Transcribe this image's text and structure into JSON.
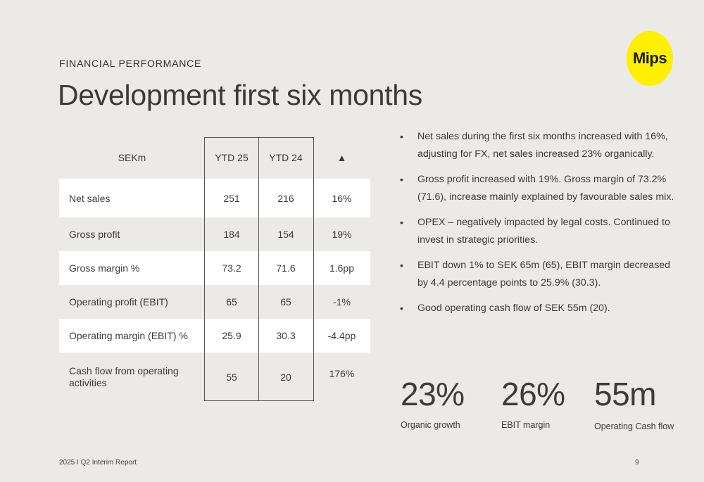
{
  "section_label": "FINANCIAL PERFORMANCE",
  "title": "Development first six months",
  "logo_text": "Mips",
  "colors": {
    "background": "#ECEAE6",
    "logo_yellow": "#FFEF00",
    "row_white": "#FFFFFF"
  },
  "table": {
    "headers": [
      "SEKm",
      "YTD 25",
      "YTD 24",
      "▲"
    ],
    "rows": [
      {
        "label": "Net sales",
        "ytd25": "251",
        "ytd24": "216",
        "change": "16%"
      },
      {
        "label": "Gross profit",
        "ytd25": "184",
        "ytd24": "154",
        "change": "19%"
      },
      {
        "label": "Gross margin %",
        "ytd25": "73.2",
        "ytd24": "71.6",
        "change": "1.6pp"
      },
      {
        "label": "Operating profit (EBIT)",
        "ytd25": "65",
        "ytd24": "65",
        "change": "-1%"
      },
      {
        "label": "Operating margin (EBIT) %",
        "ytd25": "25.9",
        "ytd24": "30.3",
        "change": "-4.4pp"
      },
      {
        "label": "Cash flow from operating activities",
        "ytd25": "55",
        "ytd24": "20",
        "change": "176%"
      }
    ]
  },
  "bullets": [
    "Net sales during the first six months increased with 16%, adjusting for FX, net sales increased 23% organically.",
    "Gross profit increased with 19%. Gross margin of 73.2% (71.6), increase mainly explained by favourable sales mix.",
    "OPEX – negatively impacted by legal costs. Continued to invest in strategic priorities.",
    "EBIT down 1% to SEK 65m (65), EBIT margin decreased by 4.4 percentage points to 25.9% (30.3).",
    "Good operating cash flow of SEK 55m (20)."
  ],
  "kpis": [
    {
      "value": "23%",
      "caption": "Organic growth"
    },
    {
      "value": "26%",
      "caption": "EBIT margin"
    },
    {
      "value": "55m",
      "caption": "Operating Cash flow"
    }
  ],
  "footer": {
    "report": "2025 I Q2 Interim Report",
    "page": "9"
  }
}
